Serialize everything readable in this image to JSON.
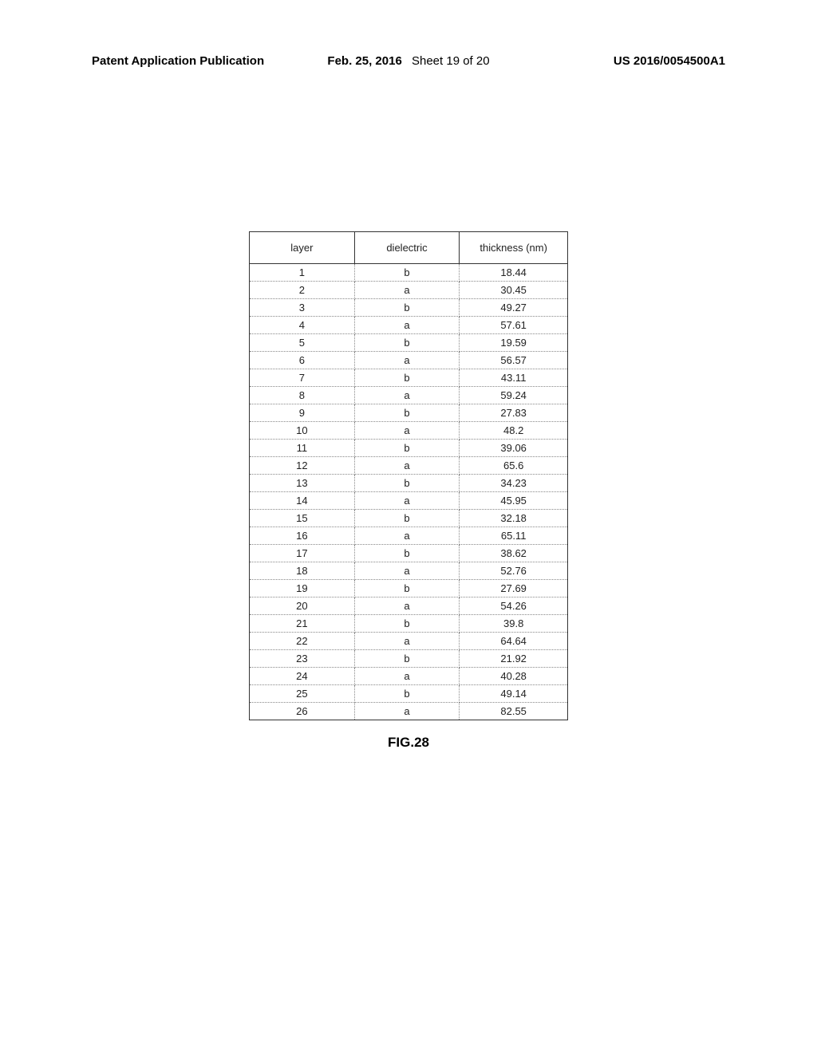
{
  "header": {
    "left": "Patent Application Publication",
    "date": "Feb. 25, 2016",
    "sheet": "Sheet 19 of 20",
    "right": "US 2016/0054500A1"
  },
  "table": {
    "columns": [
      "layer",
      "dielectric",
      "thickness (nm)"
    ],
    "rows": [
      [
        "1",
        "b",
        "18.44"
      ],
      [
        "2",
        "a",
        "30.45"
      ],
      [
        "3",
        "b",
        "49.27"
      ],
      [
        "4",
        "a",
        "57.61"
      ],
      [
        "5",
        "b",
        "19.59"
      ],
      [
        "6",
        "a",
        "56.57"
      ],
      [
        "7",
        "b",
        "43.11"
      ],
      [
        "8",
        "a",
        "59.24"
      ],
      [
        "9",
        "b",
        "27.83"
      ],
      [
        "10",
        "a",
        "48.2"
      ],
      [
        "11",
        "b",
        "39.06"
      ],
      [
        "12",
        "a",
        "65.6"
      ],
      [
        "13",
        "b",
        "34.23"
      ],
      [
        "14",
        "a",
        "45.95"
      ],
      [
        "15",
        "b",
        "32.18"
      ],
      [
        "16",
        "a",
        "65.11"
      ],
      [
        "17",
        "b",
        "38.62"
      ],
      [
        "18",
        "a",
        "52.76"
      ],
      [
        "19",
        "b",
        "27.69"
      ],
      [
        "20",
        "a",
        "54.26"
      ],
      [
        "21",
        "b",
        "39.8"
      ],
      [
        "22",
        "a",
        "64.64"
      ],
      [
        "23",
        "b",
        "21.92"
      ],
      [
        "24",
        "a",
        "40.28"
      ],
      [
        "25",
        "b",
        "49.14"
      ],
      [
        "26",
        "a",
        "82.55"
      ]
    ]
  },
  "figure_label": "FIG.28"
}
